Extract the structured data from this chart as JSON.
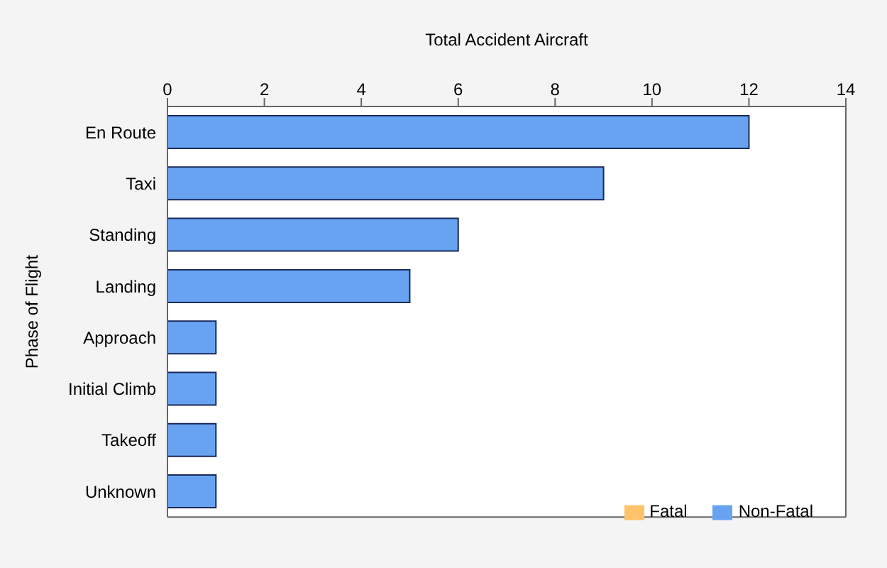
{
  "chart_data": {
    "type": "bar",
    "orientation": "horizontal",
    "stacked": true,
    "xlabel": "Total Accident Aircraft",
    "ylabel": "Phase of Flight",
    "categories": [
      "En Route",
      "Taxi",
      "Standing",
      "Landing",
      "Approach",
      "Initial Climb",
      "Takeoff",
      "Unknown"
    ],
    "series": [
      {
        "name": "Fatal",
        "color": "#ffc46a",
        "values": [
          0,
          0,
          0,
          0,
          0,
          0,
          0,
          0
        ]
      },
      {
        "name": "Non-Fatal",
        "color": "#68a3f2",
        "values": [
          12,
          9,
          6,
          5,
          1,
          1,
          1,
          1
        ]
      }
    ],
    "xlim": [
      0,
      14
    ],
    "xticks": [
      0,
      2,
      4,
      6,
      8,
      10,
      12,
      14
    ],
    "grid": false,
    "legend": "bottom right"
  }
}
